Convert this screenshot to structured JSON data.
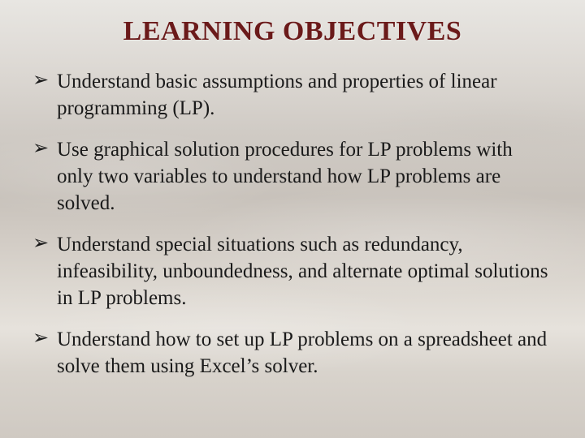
{
  "title": "LEARNING OBJECTIVES",
  "title_color": "#6b1a1a",
  "title_fontsize": 34,
  "body_fontsize": 25,
  "text_color": "#1a1a1a",
  "bullet_glyph": "➢",
  "background_gradient_stops": [
    "#e8e6e2",
    "#ddd9d4",
    "#d0cbc5",
    "#c8c2bb",
    "#d2ccc5",
    "#dcd7d0",
    "#e6e2dc",
    "#d8d3cc",
    "#cfc9c2"
  ],
  "objectives": [
    "Understand basic assumptions and properties of linear programming (LP).",
    "Use graphical solution procedures for LP problems with only two variables to understand how LP problems are solved.",
    "Understand special situations such as redundancy, infeasibility, unboundedness, and alternate optimal solutions in LP problems.",
    "Understand how to set up LP problems on a spreadsheet and solve them using Excel’s solver."
  ]
}
